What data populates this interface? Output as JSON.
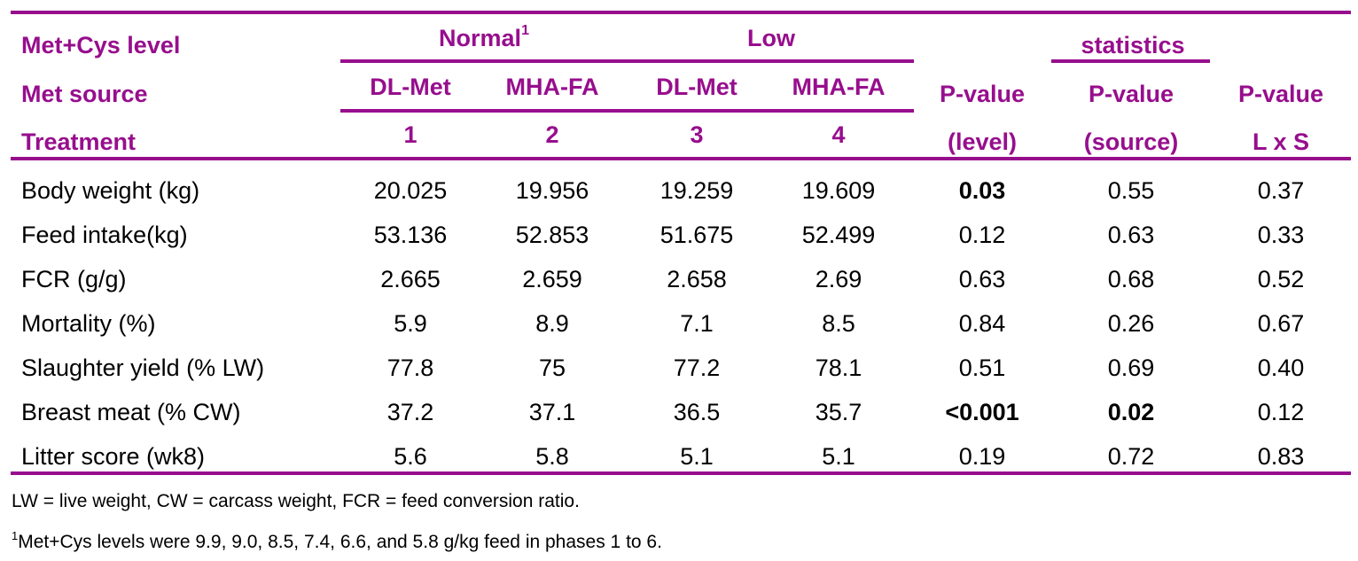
{
  "header": {
    "row1_label": "Met+Cys level",
    "row2_label": "Met source",
    "row3_label": "Treatment",
    "normal_label": "Normal",
    "normal_sup": "1",
    "low_label": "Low",
    "statistics_label": "statistics",
    "sources": [
      "DL-Met",
      "MHA-FA",
      "DL-Met",
      "MHA-FA"
    ],
    "treatments": [
      "1",
      "2",
      "3",
      "4"
    ],
    "pvalue_label": "P-value",
    "level_label": "(level)",
    "source_label": "(source)",
    "interaction_label": "L x S"
  },
  "rows": [
    {
      "label": "Body weight (kg)",
      "values": [
        "20.025",
        "19.956",
        "19.259",
        "19.609"
      ],
      "p_level": "0.03",
      "p_source": "0.55",
      "p_lxs": "0.37"
    },
    {
      "label": "Feed intake(kg)",
      "values": [
        "53.136",
        "52.853",
        "51.675",
        "52.499"
      ],
      "p_level": "0.12",
      "p_source": "0.63",
      "p_lxs": "0.33"
    },
    {
      "label": "FCR (g/g)",
      "values": [
        "2.665",
        "2.659",
        "2.658",
        "2.69"
      ],
      "p_level": "0.63",
      "p_source": "0.68",
      "p_lxs": "0.52"
    },
    {
      "label": "Mortality (%)",
      "values": [
        "5.9",
        "8.9",
        "7.1",
        "8.5"
      ],
      "p_level": "0.84",
      "p_source": "0.26",
      "p_lxs": "0.67"
    },
    {
      "label": "Slaughter yield (% LW)",
      "values": [
        "77.8",
        "75",
        "77.2",
        "78.1"
      ],
      "p_level": "0.51",
      "p_source": "0.69",
      "p_lxs": "0.40"
    },
    {
      "label": "Breast meat (% CW)",
      "values": [
        "37.2",
        "37.1",
        "36.5",
        "35.7"
      ],
      "p_level": "<0.001",
      "p_source": "0.02",
      "p_lxs": "0.12"
    },
    {
      "label": "Litter score (wk8)",
      "values": [
        "5.6",
        "5.8",
        "5.1",
        "5.1"
      ],
      "p_level": "0.19",
      "p_source": "0.72",
      "p_lxs": "0.83"
    }
  ],
  "footnotes": {
    "line1": "LW = live weight, CW =  carcass weight, FCR = feed conversion ratio.",
    "line2_sup": "1",
    "line2": "Met+Cys levels were 9.9, 9.0, 8.5, 7.4, 6.6, and 5.8 g/kg feed in phases 1 to 6."
  },
  "colors": {
    "accent": "#970e8d",
    "text": "#000000"
  }
}
